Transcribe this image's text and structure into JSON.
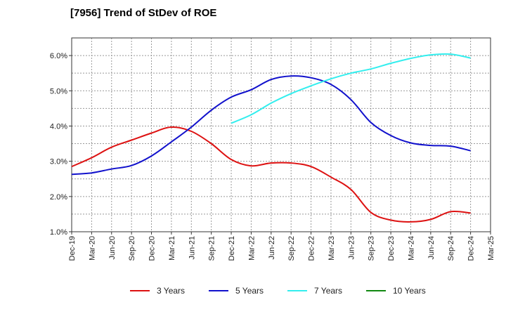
{
  "chart_data": {
    "type": "line",
    "title": "[7956]  Trend of StDev of ROE",
    "xlabel": "",
    "ylabel": "",
    "x": [
      "Dec-19",
      "Mar-20",
      "Jun-20",
      "Sep-20",
      "Dec-20",
      "Mar-21",
      "Jun-21",
      "Sep-21",
      "Dec-21",
      "Mar-22",
      "Jun-22",
      "Sep-22",
      "Dec-22",
      "Mar-23",
      "Jun-23",
      "Sep-23",
      "Dec-23",
      "Mar-24",
      "Jun-24",
      "Sep-24",
      "Dec-24",
      "Mar-25"
    ],
    "ylim": [
      1.0,
      6.5
    ],
    "yticks": [
      1.0,
      2.0,
      3.0,
      4.0,
      5.0,
      6.0
    ],
    "ytick_labels": [
      "1.0%",
      "2.0%",
      "3.0%",
      "4.0%",
      "5.0%",
      "6.0%"
    ],
    "grid": true,
    "legend_position": "bottom",
    "series": [
      {
        "name": "3 Years",
        "color": "#dd1111",
        "values": [
          2.85,
          3.1,
          3.4,
          3.6,
          3.8,
          3.97,
          3.85,
          3.5,
          3.05,
          2.87,
          2.95,
          2.95,
          2.85,
          2.55,
          2.2,
          1.55,
          1.33,
          1.28,
          1.35,
          1.57,
          1.53,
          null
        ]
      },
      {
        "name": "5 Years",
        "color": "#1111cc",
        "values": [
          2.63,
          2.67,
          2.78,
          2.88,
          3.15,
          3.55,
          3.97,
          4.45,
          4.82,
          5.03,
          5.32,
          5.42,
          5.37,
          5.18,
          4.75,
          4.1,
          3.73,
          3.52,
          3.45,
          3.43,
          3.3,
          null
        ]
      },
      {
        "name": "7 Years",
        "color": "#33eeee",
        "values": [
          null,
          null,
          null,
          null,
          null,
          null,
          null,
          null,
          4.08,
          4.32,
          4.65,
          4.92,
          5.14,
          5.34,
          5.5,
          5.62,
          5.78,
          5.92,
          6.02,
          6.04,
          5.93,
          null
        ]
      },
      {
        "name": "10 Years",
        "color": "#118811",
        "values": [
          null,
          null,
          null,
          null,
          null,
          null,
          null,
          null,
          null,
          null,
          null,
          null,
          null,
          null,
          null,
          null,
          null,
          null,
          null,
          null,
          null,
          null
        ]
      }
    ]
  }
}
